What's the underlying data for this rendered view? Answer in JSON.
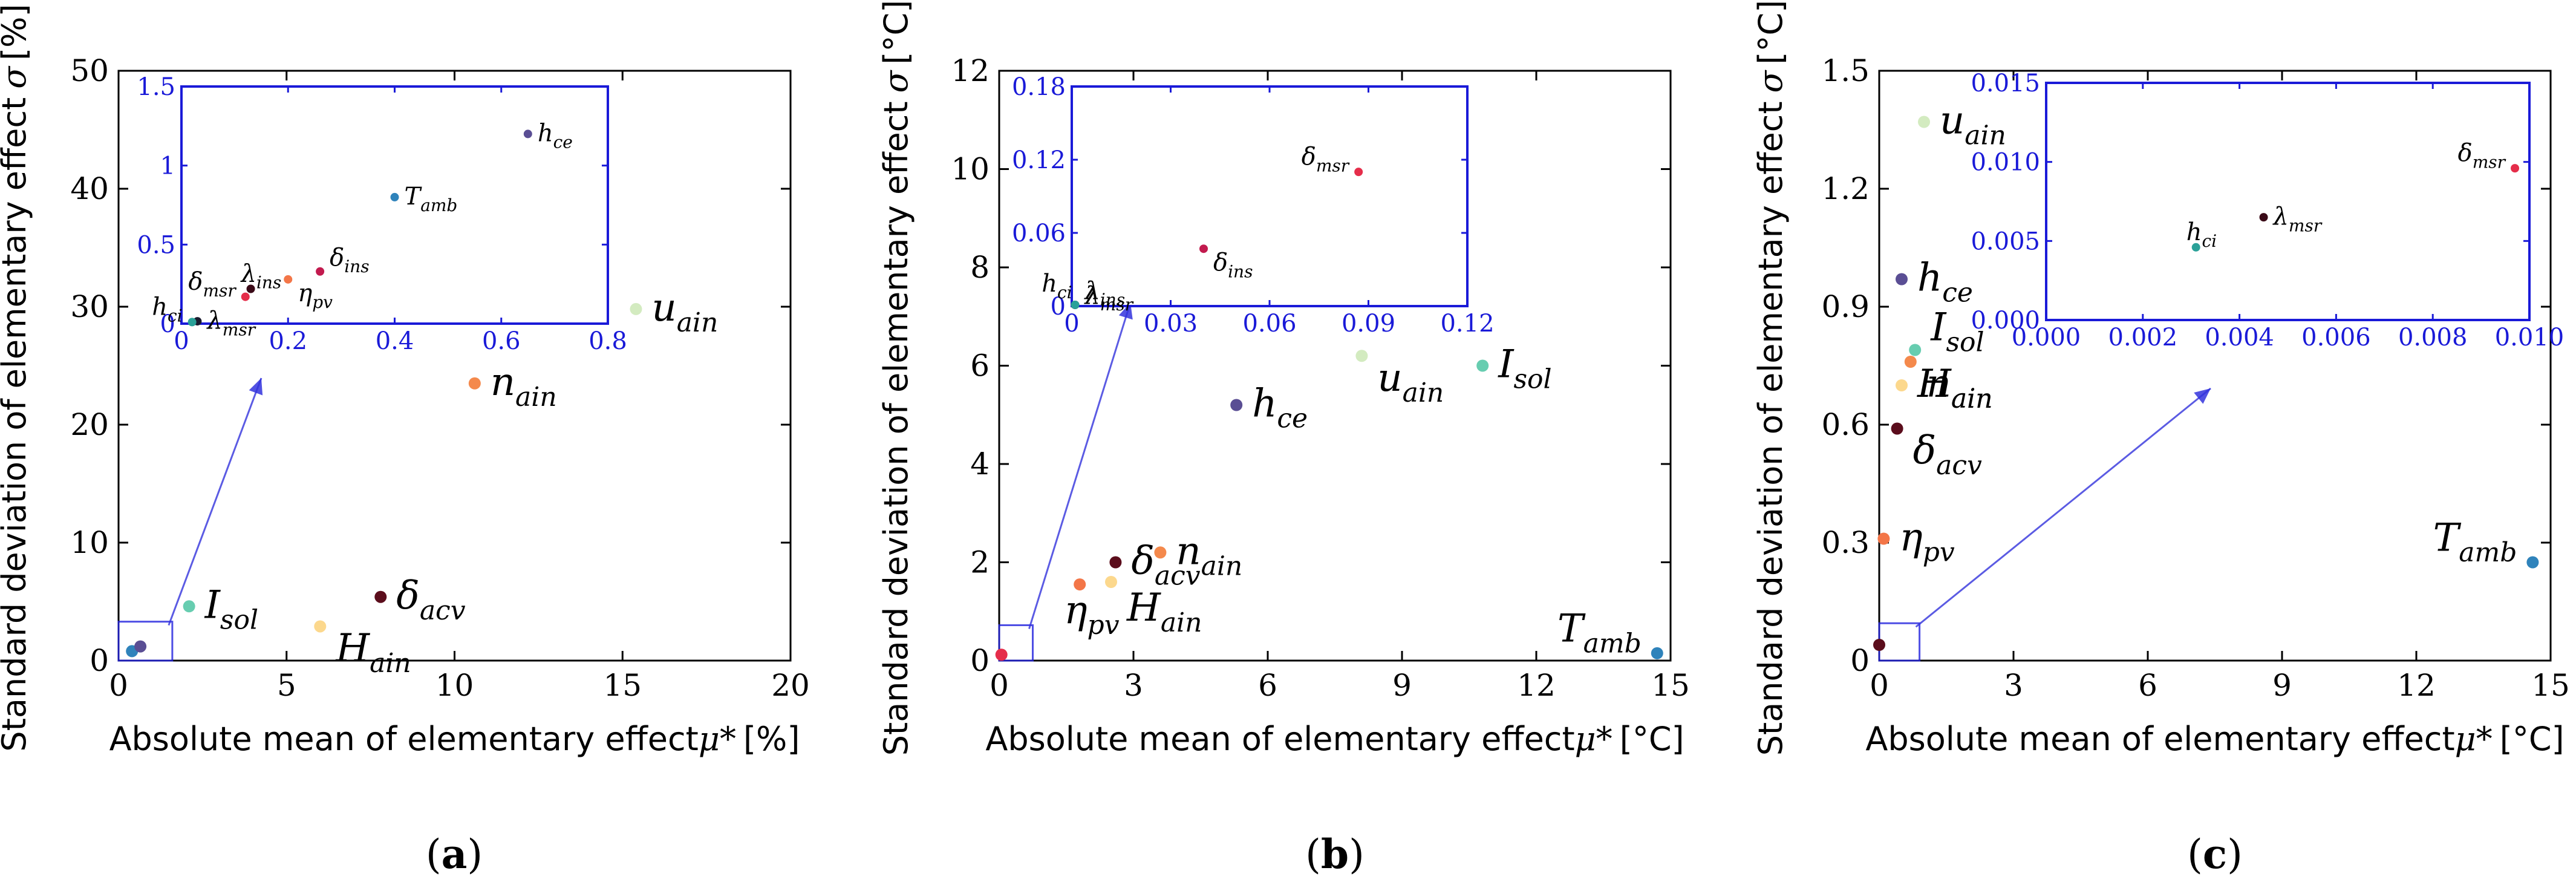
{
  "chart_data": [
    {
      "type": "scatter",
      "panel_label": "a",
      "xlabel": "Absolute mean of elementary effect",
      "xlabel_symbol": "μ*",
      "xlabel_unit": "[%]",
      "ylabel": "Standard deviation of elementary effect",
      "ylabel_symbol": "σ",
      "ylabel_unit": "[%]",
      "xlim": [
        0,
        20
      ],
      "ylim": [
        0,
        50
      ],
      "xticks": [
        0,
        5,
        10,
        15,
        20
      ],
      "yticks": [
        0,
        10,
        20,
        30,
        40,
        50
      ],
      "points": [
        {
          "name": "u_ain",
          "base": "u",
          "sub": "ain",
          "x": 15.4,
          "y": 29.8,
          "color": "#d3ebc0",
          "label_pos": "right",
          "label_size": "large"
        },
        {
          "name": "n_ain",
          "base": "n",
          "sub": "ain",
          "x": 10.6,
          "y": 23.5,
          "color": "#f4894c",
          "label_pos": "right",
          "label_size": "large"
        },
        {
          "name": "I_sol",
          "base": "I",
          "sub": "sol",
          "x": 2.1,
          "y": 4.6,
          "color": "#67cdb0",
          "label_pos": "right",
          "label_size": "large"
        },
        {
          "name": "H_ain",
          "base": "H",
          "sub": "ain",
          "x": 6.0,
          "y": 2.9,
          "color": "#fcd88d",
          "label_pos": "right-below",
          "label_size": "large"
        },
        {
          "name": "delta_acv",
          "base": "δ",
          "sub": "acv",
          "x": 7.8,
          "y": 5.4,
          "color": "#5b0d1c",
          "label_pos": "right",
          "label_size": "large"
        },
        {
          "name": "T_amb",
          "base": "T",
          "sub": "amb",
          "x": 0.4,
          "y": 0.8,
          "color": "#2f83bb",
          "label_pos": "none",
          "label_size": "large"
        },
        {
          "name": "h_ce",
          "base": "h",
          "sub": "ce",
          "x": 0.65,
          "y": 1.2,
          "color": "#5a4e94",
          "label_pos": "none",
          "label_size": "large"
        }
      ],
      "inset": {
        "xlim": [
          0,
          0.8
        ],
        "ylim": [
          0,
          1.5
        ],
        "xticks": [
          0.0,
          0.2,
          0.4,
          0.6,
          0.8
        ],
        "yticks": [
          0.0,
          0.5,
          1.0,
          1.5
        ],
        "tick_color": "#1a1ad8",
        "points": [
          {
            "name": "h_ce",
            "base": "h",
            "sub": "ce",
            "x": 0.65,
            "y": 1.2,
            "color": "#5a4e94",
            "label_pos": "right"
          },
          {
            "name": "T_amb",
            "base": "T",
            "sub": "amb",
            "x": 0.4,
            "y": 0.8,
            "color": "#2f83bb",
            "label_pos": "right"
          },
          {
            "name": "delta_ins",
            "base": "δ",
            "sub": "ins",
            "x": 0.26,
            "y": 0.33,
            "color": "#c21a4e",
            "label_pos": "right-above"
          },
          {
            "name": "eta_pv",
            "base": "η",
            "sub": "pv",
            "x": 0.2,
            "y": 0.28,
            "color": "#f37648",
            "label_pos": "right-below"
          },
          {
            "name": "lambda_ins",
            "base": "λ",
            "sub": "ins",
            "x": 0.13,
            "y": 0.22,
            "color": "#3a0a17",
            "label_pos": "above"
          },
          {
            "name": "delta_msr",
            "base": "δ",
            "sub": "msr",
            "x": 0.12,
            "y": 0.17,
            "color": "#e52d4a",
            "label_pos": "left-above"
          },
          {
            "name": "lambda_msr",
            "base": "λ",
            "sub": "msr",
            "x": 0.03,
            "y": 0.015,
            "color": "#1a1a2e",
            "label_pos": "right"
          },
          {
            "name": "h_ci",
            "base": "h",
            "sub": "ci",
            "x": 0.02,
            "y": 0.01,
            "color": "#2aa198",
            "label_pos": "left-above"
          }
        ]
      }
    },
    {
      "type": "scatter",
      "panel_label": "b",
      "xlabel": "Absolute mean of elementary effect",
      "xlabel_symbol": "μ*",
      "xlabel_unit": "[°C]",
      "ylabel": "Standard deviation of elementary effect",
      "ylabel_symbol": "σ",
      "ylabel_unit": "[°C]",
      "xlim": [
        0,
        15
      ],
      "ylim": [
        0,
        12
      ],
      "xticks": [
        0,
        3,
        6,
        9,
        12,
        15
      ],
      "yticks": [
        0,
        2,
        4,
        6,
        8,
        10,
        12
      ],
      "points": [
        {
          "name": "u_ain",
          "base": "u",
          "sub": "ain",
          "x": 8.1,
          "y": 6.2,
          "color": "#d3ebc0",
          "label_pos": "right-below",
          "label_size": "large"
        },
        {
          "name": "I_sol",
          "base": "I",
          "sub": "sol",
          "x": 10.8,
          "y": 6.0,
          "color": "#67cdb0",
          "label_pos": "right",
          "label_size": "large"
        },
        {
          "name": "h_ce",
          "base": "h",
          "sub": "ce",
          "x": 5.3,
          "y": 5.2,
          "color": "#5a4e94",
          "label_pos": "right",
          "label_size": "large"
        },
        {
          "name": "n_ain",
          "base": "n",
          "sub": "ain",
          "x": 3.6,
          "y": 2.2,
          "color": "#f4894c",
          "label_pos": "right",
          "label_size": "large"
        },
        {
          "name": "delta_acv",
          "base": "δ",
          "sub": "acv",
          "x": 2.6,
          "y": 2.0,
          "color": "#5b0d1c",
          "label_pos": "right",
          "label_size": "large"
        },
        {
          "name": "eta_pv",
          "base": "η",
          "sub": "pv",
          "x": 1.8,
          "y": 1.55,
          "color": "#f37648",
          "label_pos": "below-left",
          "label_size": "large"
        },
        {
          "name": "H_ain",
          "base": "H",
          "sub": "ain",
          "x": 2.5,
          "y": 1.6,
          "color": "#fcd88d",
          "label_pos": "below-right",
          "label_size": "large"
        },
        {
          "name": "T_amb",
          "base": "T",
          "sub": "amb",
          "x": 14.7,
          "y": 0.15,
          "color": "#2f83bb",
          "label_pos": "left-above",
          "label_size": "large"
        },
        {
          "name": "delta_msr",
          "base": "δ",
          "sub": "msr",
          "x": 0.05,
          "y": 0.12,
          "color": "#e52d4a",
          "label_pos": "none",
          "label_size": "large"
        }
      ],
      "inset": {
        "xlim": [
          0,
          0.12
        ],
        "ylim": [
          0,
          0.18
        ],
        "xticks": [
          0.0,
          0.03,
          0.06,
          0.09,
          0.12
        ],
        "yticks": [
          0.0,
          0.06,
          0.12,
          0.18
        ],
        "tick_color": "#1a1ad8",
        "points": [
          {
            "name": "delta_msr",
            "base": "δ",
            "sub": "msr",
            "x": 0.087,
            "y": 0.11,
            "color": "#e52d4a",
            "label_pos": "left-above"
          },
          {
            "name": "delta_ins",
            "base": "δ",
            "sub": "ins",
            "x": 0.04,
            "y": 0.047,
            "color": "#c21a4e",
            "label_pos": "right-below"
          },
          {
            "name": "lambda_ins",
            "base": "λ",
            "sub": "ins",
            "x": 0.001,
            "y": 0.001,
            "color": "#3a0a17",
            "label_pos": "right-above"
          },
          {
            "name": "lambda_msr",
            "base": "λ",
            "sub": "msr",
            "x": 0.001,
            "y": 0.001,
            "color": "#1a1a2e",
            "label_pos": "right-upper"
          },
          {
            "name": "h_ci",
            "base": "h",
            "sub": "ci",
            "x": 0.001,
            "y": 0.001,
            "color": "#2aa198",
            "label_pos": "left-upper"
          }
        ]
      }
    },
    {
      "type": "scatter",
      "panel_label": "c",
      "xlabel": "Absolute mean of elementary effect",
      "xlabel_symbol": "μ*",
      "xlabel_unit": "[°C]",
      "ylabel": "Standard deviation of elementary effect",
      "ylabel_symbol": "σ",
      "ylabel_unit": "[°C]",
      "xlim": [
        0,
        15
      ],
      "ylim": [
        0,
        1.5
      ],
      "xticks": [
        0,
        3,
        6,
        9,
        12,
        15
      ],
      "yticks": [
        0.0,
        0.3,
        0.6,
        0.9,
        1.2,
        1.5
      ],
      "points": [
        {
          "name": "u_ain",
          "base": "u",
          "sub": "ain",
          "x": 1.0,
          "y": 1.37,
          "color": "#d3ebc0",
          "label_pos": "right",
          "label_size": "large"
        },
        {
          "name": "h_ce",
          "base": "h",
          "sub": "ce",
          "x": 0.5,
          "y": 0.97,
          "color": "#5a4e94",
          "label_pos": "right",
          "label_size": "large"
        },
        {
          "name": "I_sol",
          "base": "I",
          "sub": "sol",
          "x": 0.8,
          "y": 0.79,
          "color": "#67cdb0",
          "label_pos": "right-above",
          "label_size": "large"
        },
        {
          "name": "H_ain",
          "base": "H",
          "sub": "ain",
          "x": 0.5,
          "y": 0.7,
          "color": "#fcd88d",
          "label_pos": "right",
          "label_size": "large"
        },
        {
          "name": "n_ain",
          "base": "n",
          "sub": "ain",
          "x": 0.7,
          "y": 0.76,
          "color": "#f4894c",
          "label_pos": "right-below",
          "label_size": "large"
        },
        {
          "name": "delta_acv",
          "base": "δ",
          "sub": "acv",
          "x": 0.4,
          "y": 0.59,
          "color": "#5b0d1c",
          "label_pos": "right-below",
          "label_size": "large"
        },
        {
          "name": "eta_pv",
          "base": "η",
          "sub": "pv",
          "x": 0.1,
          "y": 0.31,
          "color": "#f37648",
          "label_pos": "right",
          "label_size": "large"
        },
        {
          "name": "T_amb",
          "base": "T",
          "sub": "amb",
          "x": 14.6,
          "y": 0.25,
          "color": "#2f83bb",
          "label_pos": "left-above",
          "label_size": "large"
        },
        {
          "name": "lambda_msr",
          "base": "λ",
          "sub": "msr",
          "x": 0.0,
          "y": 0.04,
          "color": "#5b0d1c",
          "label_pos": "none",
          "label_size": "large"
        }
      ],
      "inset": {
        "xlim": [
          0,
          0.01
        ],
        "ylim": [
          0,
          0.015
        ],
        "xticks": [
          0.0,
          0.002,
          0.004,
          0.006,
          0.008,
          0.01
        ],
        "xtick_labels": [
          "0.000",
          "0.002",
          "0.004",
          "0.006",
          "0.008",
          "0.010"
        ],
        "yticks": [
          0.0,
          0.005,
          0.01,
          0.015
        ],
        "ytick_labels": [
          "0.000",
          "0.005",
          "0.010",
          "0.015"
        ],
        "tick_color": "#1a1ad8",
        "points": [
          {
            "name": "delta_msr",
            "base": "δ",
            "sub": "msr",
            "x": 0.0097,
            "y": 0.0096,
            "color": "#e52d4a",
            "label_pos": "left-above"
          },
          {
            "name": "lambda_msr",
            "base": "λ",
            "sub": "msr",
            "x": 0.0045,
            "y": 0.0065,
            "color": "#3a0a17",
            "label_pos": "right"
          },
          {
            "name": "h_ci",
            "base": "h",
            "sub": "ci",
            "x": 0.0031,
            "y": 0.0046,
            "color": "#2aa198",
            "label_pos": "above"
          }
        ]
      }
    }
  ]
}
